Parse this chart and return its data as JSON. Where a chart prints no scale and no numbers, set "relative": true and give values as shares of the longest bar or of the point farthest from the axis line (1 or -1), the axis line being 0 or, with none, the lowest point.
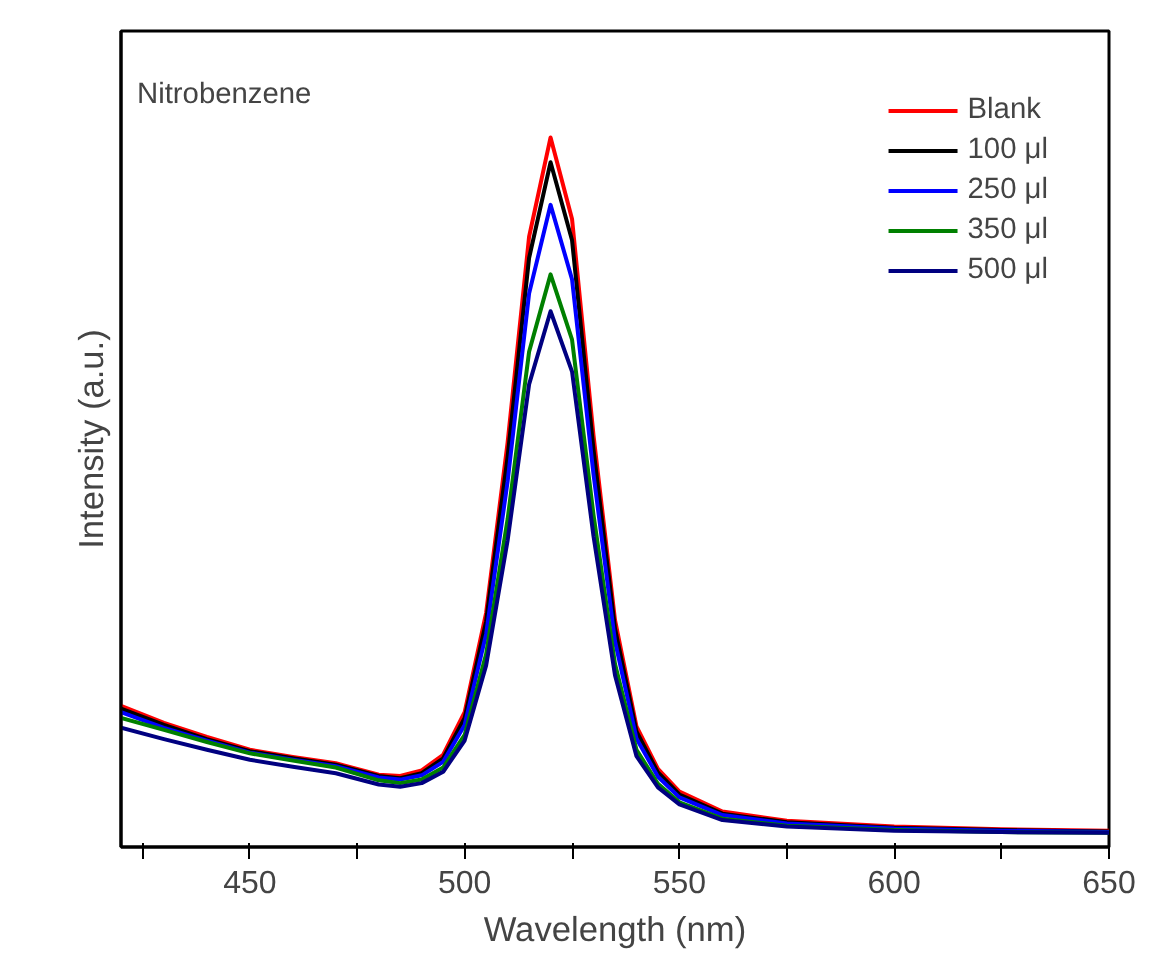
{
  "chart_data": {
    "type": "line",
    "relative": true,
    "xlabel": "Wavelength (nm)",
    "ylabel": "Intensity (a.u.)",
    "annotations": [
      "Nitrobenzene"
    ],
    "x": [
      420,
      430,
      440,
      450,
      460,
      470,
      480,
      485,
      490,
      495,
      500,
      505,
      510,
      515,
      520,
      525,
      530,
      535,
      540,
      545,
      550,
      560,
      575,
      600,
      625,
      650
    ],
    "xlim": [
      420,
      650
    ],
    "xticks": [
      {
        "value": 425,
        "label": null
      },
      450,
      {
        "value": 475,
        "label": null
      },
      500,
      {
        "value": 525,
        "label": null
      },
      550,
      {
        "value": 575,
        "label": null
      },
      600,
      {
        "value": 625,
        "label": null
      },
      650
    ],
    "legend": "top right",
    "grid": false,
    "line_style": "solid",
    "series": [
      {
        "name": "Blank",
        "color": "#ff0000",
        "values": [
          0.199,
          0.175,
          0.155,
          0.137,
          0.127,
          0.118,
          0.102,
          0.1,
          0.108,
          0.13,
          0.19,
          0.33,
          0.57,
          0.86,
          1.0,
          0.885,
          0.58,
          0.32,
          0.17,
          0.11,
          0.078,
          0.05,
          0.037,
          0.029,
          0.025,
          0.023
        ]
      },
      {
        "name": "100 μl",
        "color": "#000000",
        "values": [
          0.195,
          0.172,
          0.152,
          0.135,
          0.125,
          0.116,
          0.1,
          0.097,
          0.104,
          0.125,
          0.182,
          0.318,
          0.55,
          0.83,
          0.965,
          0.855,
          0.56,
          0.308,
          0.163,
          0.105,
          0.074,
          0.047,
          0.035,
          0.027,
          0.024,
          0.022
        ]
      },
      {
        "name": "250 μl",
        "color": "#0000ff",
        "values": [
          0.19,
          0.168,
          0.15,
          0.133,
          0.123,
          0.114,
          0.098,
          0.095,
          0.101,
          0.12,
          0.172,
          0.3,
          0.515,
          0.78,
          0.905,
          0.8,
          0.525,
          0.29,
          0.153,
          0.099,
          0.07,
          0.045,
          0.033,
          0.026,
          0.023,
          0.021
        ]
      },
      {
        "name": "350 μl",
        "color": "#008000",
        "values": [
          0.182,
          0.165,
          0.148,
          0.132,
          0.122,
          0.112,
          0.094,
          0.09,
          0.095,
          0.112,
          0.158,
          0.272,
          0.462,
          0.698,
          0.807,
          0.715,
          0.468,
          0.258,
          0.137,
          0.089,
          0.063,
          0.04,
          0.03,
          0.024,
          0.021,
          0.02
        ]
      },
      {
        "name": "500 μl",
        "color": "#000080",
        "values": [
          0.168,
          0.152,
          0.137,
          0.123,
          0.113,
          0.104,
          0.088,
          0.085,
          0.09,
          0.106,
          0.15,
          0.256,
          0.432,
          0.652,
          0.755,
          0.67,
          0.438,
          0.242,
          0.128,
          0.084,
          0.06,
          0.038,
          0.029,
          0.023,
          0.021,
          0.02
        ]
      }
    ]
  }
}
